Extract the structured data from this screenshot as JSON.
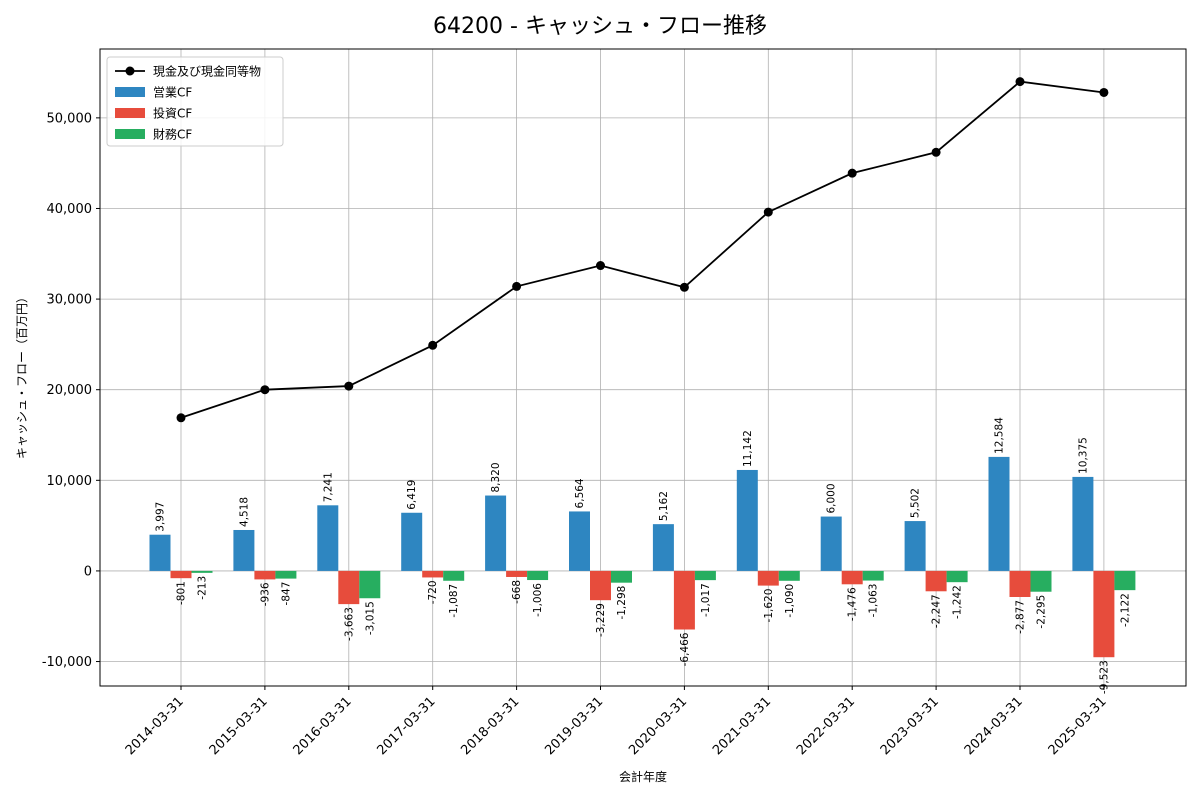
{
  "chart_data": {
    "type": "bar",
    "title": "64200 - キャッシュ・フロー推移",
    "xlabel": "会計年度",
    "ylabel": "キャッシュ・フロー（百万円）",
    "ylim": [
      -12700,
      57600
    ],
    "yticks": [
      -10000,
      0,
      10000,
      20000,
      30000,
      40000,
      50000
    ],
    "ytick_labels": [
      "-10,000",
      "0",
      "10,000",
      "20,000",
      "30,000",
      "40,000",
      "50,000"
    ],
    "grid": true,
    "legend_position": "top-left",
    "categories": [
      "2014-03-31",
      "2015-03-31",
      "2016-03-31",
      "2017-03-31",
      "2018-03-31",
      "2019-03-31",
      "2020-03-31",
      "2021-03-31",
      "2022-03-31",
      "2023-03-31",
      "2024-03-31",
      "2025-03-31"
    ],
    "series": [
      {
        "name": "営業CF",
        "kind": "bar",
        "color": "#2e86c1",
        "values": [
          3997,
          4518,
          7241,
          6419,
          8320,
          6564,
          5162,
          11142,
          6000,
          5502,
          12584,
          10375
        ],
        "labels": [
          "3,997",
          "4,518",
          "7,241",
          "6,419",
          "8,320",
          "6,564",
          "5,162",
          "11,142",
          "6,000",
          "5,502",
          "12,584",
          "10,375"
        ]
      },
      {
        "name": "投資CF",
        "kind": "bar",
        "color": "#e74c3c",
        "values": [
          -801,
          -936,
          -3663,
          -720,
          -668,
          -3229,
          -6466,
          -1620,
          -1476,
          -2247,
          -2877,
          -9523
        ],
        "labels": [
          "-801",
          "-936",
          "-3,663",
          "-720",
          "-668",
          "-3,229",
          "-6,466",
          "-1,620",
          "-1,476",
          "-2,247",
          "-2,877",
          "-9,523"
        ]
      },
      {
        "name": "財務CF",
        "kind": "bar",
        "color": "#27ae60",
        "values": [
          -213,
          -847,
          -3015,
          -1087,
          -1006,
          -1298,
          -1017,
          -1090,
          -1063,
          -1242,
          -2295,
          -2122
        ],
        "labels": [
          "-213",
          "-847",
          "-3,015",
          "-1,087",
          "-1,006",
          "-1,298",
          "-1,017",
          "-1,090",
          "-1,063",
          "-1,242",
          "-2,295",
          "-2,122"
        ]
      },
      {
        "name": "現金及び現金同等物",
        "kind": "line",
        "color": "#000000",
        "values": [
          16900,
          20000,
          20400,
          24900,
          31400,
          33700,
          31300,
          39600,
          43900,
          46200,
          54000,
          52800
        ]
      }
    ]
  }
}
